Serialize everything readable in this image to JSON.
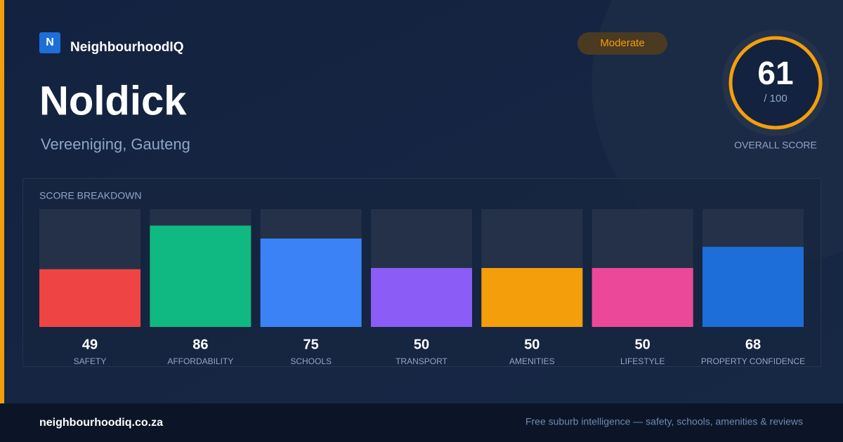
{
  "brand": {
    "logo_letter": "N",
    "name": "NeighbourhoodIQ"
  },
  "suburb": {
    "name": "Noldick",
    "location": "Vereeniging, Gauteng"
  },
  "rating": {
    "badge": "Moderate",
    "score": 61,
    "score_max_label": "/ 100",
    "score_caption": "OVERALL SCORE"
  },
  "chart_data": {
    "type": "bar",
    "title": "SCORE BREAKDOWN",
    "categories": [
      "SAFETY",
      "AFFORDABILITY",
      "SCHOOLS",
      "TRANSPORT",
      "AMENITIES",
      "LIFESTYLE",
      "PROPERTY CONFIDENCE"
    ],
    "values": [
      49,
      86,
      75,
      50,
      50,
      50,
      68
    ],
    "colors": [
      "#ef4444",
      "#10b981",
      "#3b82f6",
      "#8b5cf6",
      "#f59e0b",
      "#ec4899",
      "#1d6ed8"
    ],
    "ylim": [
      0,
      100
    ]
  },
  "footer": {
    "site": "neighbourhoodiq.co.za",
    "tagline": "Free suburb intelligence — safety, schools, amenities & reviews"
  }
}
